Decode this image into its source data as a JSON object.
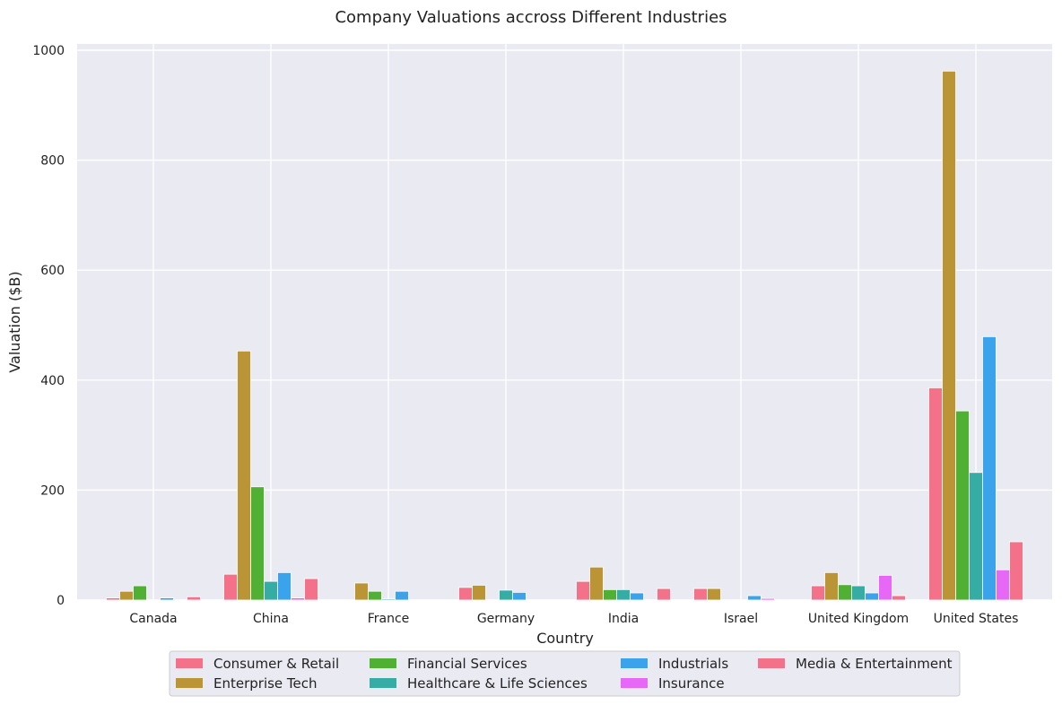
{
  "chart_data": {
    "type": "bar",
    "title": "Company Valuations accross Different Industries",
    "xlabel": "Country",
    "ylabel": "Valuation ($B)",
    "ylim": [
      0,
      1010
    ],
    "yticks": [
      0,
      200,
      400,
      600,
      800,
      1000
    ],
    "grid": true,
    "legend_position": "bottom-center",
    "categories": [
      "Canada",
      "China",
      "France",
      "Germany",
      "India",
      "Israel",
      "United Kingdom",
      "United States"
    ],
    "series": [
      {
        "name": "Consumer & Retail",
        "color": "#f4718a",
        "values": [
          4,
          47,
          0,
          23,
          34,
          21,
          26,
          386
        ]
      },
      {
        "name": "Enterprise Tech",
        "color": "#bb9535",
        "values": [
          16,
          453,
          31,
          27,
          60,
          21,
          50,
          962
        ]
      },
      {
        "name": "Financial Services",
        "color": "#50b034",
        "values": [
          26,
          206,
          16,
          0,
          19,
          0,
          28,
          344
        ]
      },
      {
        "name": "Healthcare & Life Sciences",
        "color": "#36ada4",
        "values": [
          0,
          34,
          2,
          18,
          19,
          0,
          26,
          232
        ]
      },
      {
        "name": "Industrials",
        "color": "#3ba3ec",
        "values": [
          4,
          50,
          16,
          14,
          13,
          8,
          13,
          479
        ]
      },
      {
        "name": "Insurance",
        "color": "#e767f6",
        "values": [
          0,
          4,
          0,
          0,
          0,
          3,
          45,
          55
        ]
      },
      {
        "name": "Media & Entertainment",
        "color": "#f4718a",
        "values": [
          6,
          39,
          0,
          0,
          21,
          0,
          8,
          106
        ]
      }
    ]
  }
}
